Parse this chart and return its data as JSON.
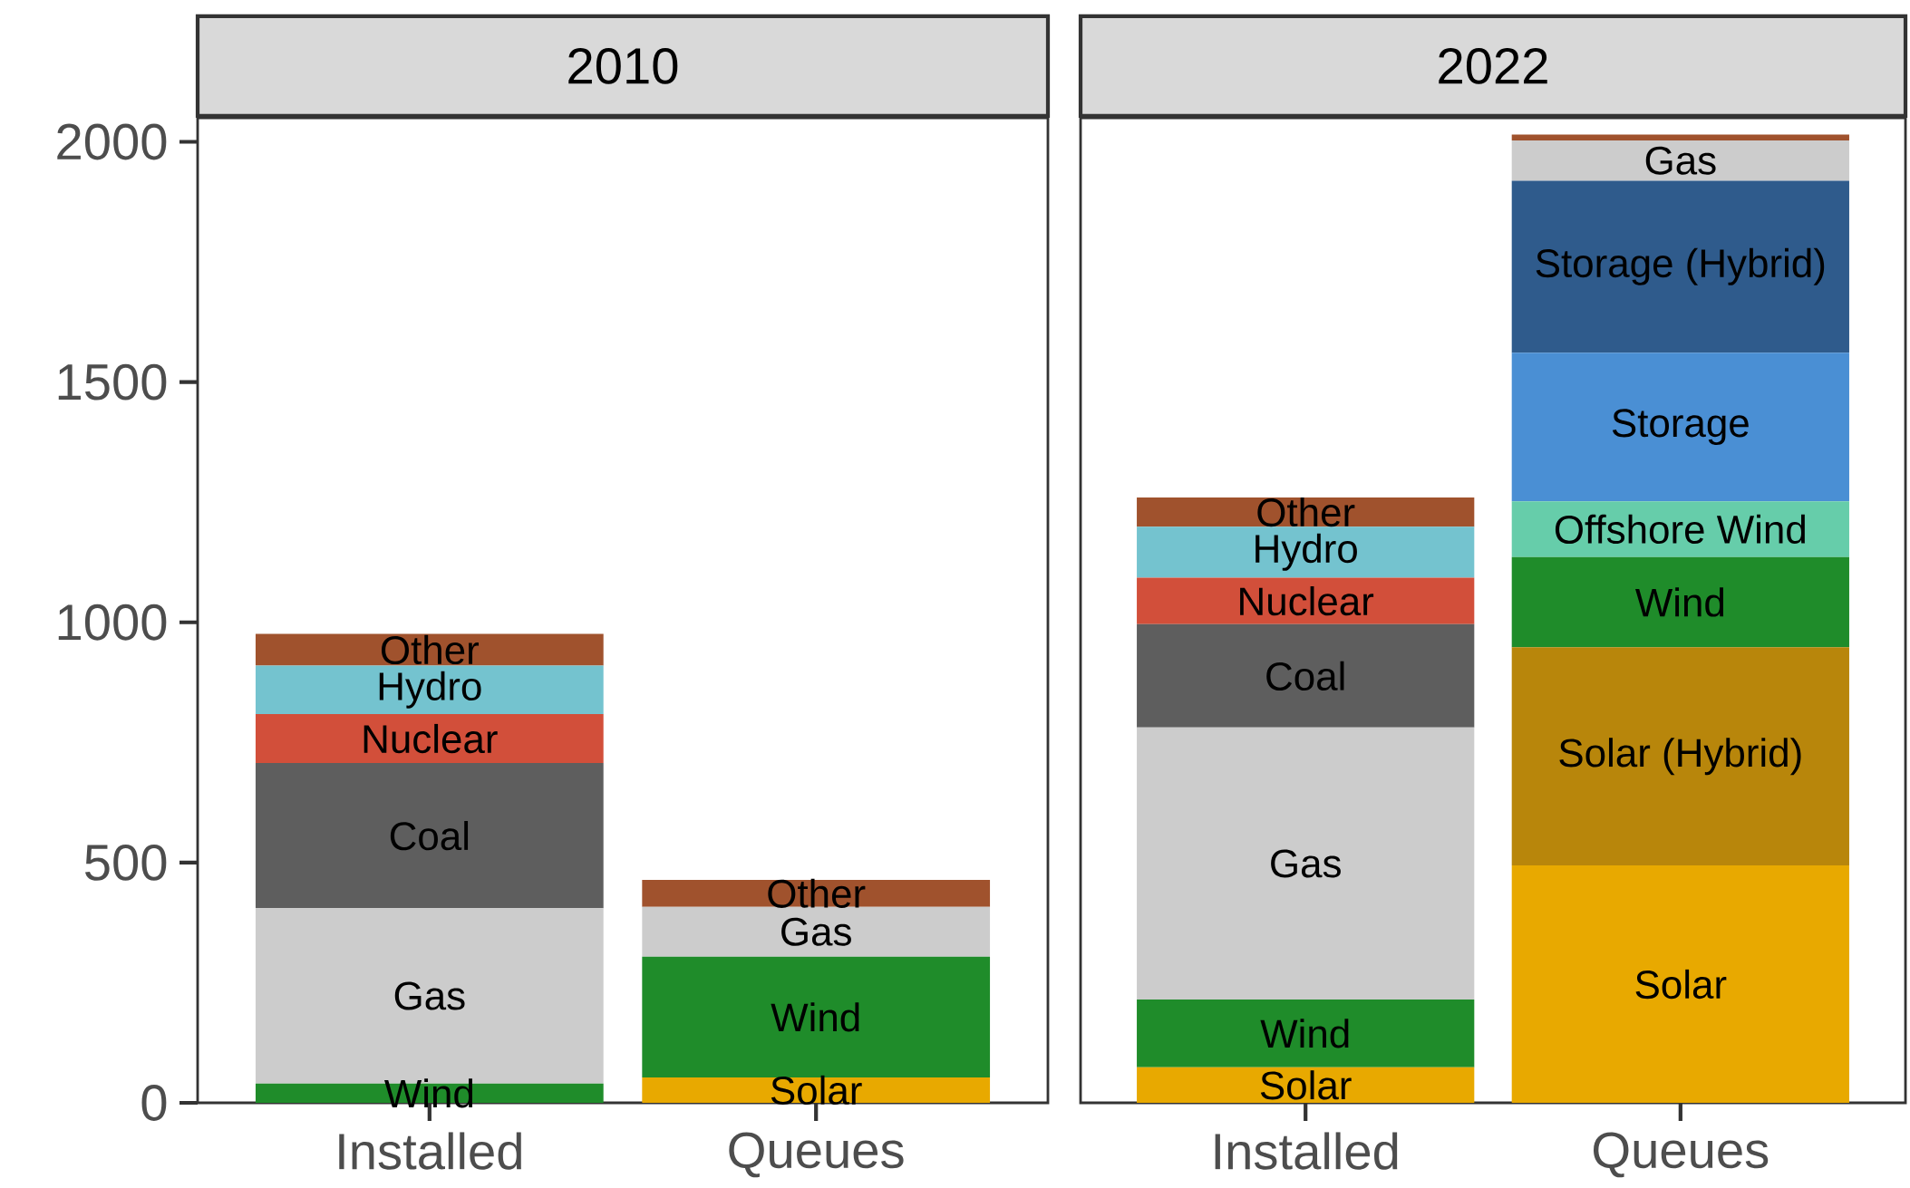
{
  "chart_data": [
    {
      "type": "bar",
      "title": "2010",
      "stacked": true,
      "categories": [
        "Installed",
        "Queues"
      ],
      "ylim": [
        0,
        2050
      ],
      "yticks": [
        0,
        500,
        1000,
        1500,
        2000
      ],
      "series": [
        {
          "color": "#e8a900",
          "values": [
            null,
            53
          ],
          "value_labels": [
            null,
            "Solar"
          ]
        },
        {
          "color": "#1f8c2a",
          "values": [
            40,
            251
          ],
          "value_labels": [
            "Wind",
            "Wind"
          ]
        },
        {
          "color": "#cccccc",
          "values": [
            365,
            104
          ],
          "value_labels": [
            "Gas",
            "Gas"
          ]
        },
        {
          "color": "#5e5e5e",
          "values": [
            302,
            null
          ],
          "value_labels": [
            "Coal",
            null
          ]
        },
        {
          "color": "#d24f3a",
          "values": [
            102,
            null
          ],
          "value_labels": [
            "Nuclear",
            null
          ]
        },
        {
          "color": "#74c3cf",
          "values": [
            101,
            null
          ],
          "value_labels": [
            "Hydro",
            null
          ]
        },
        {
          "color": "#a0522d",
          "values": [
            66,
            56
          ],
          "value_labels": [
            "Other",
            "Other"
          ]
        }
      ]
    },
    {
      "type": "bar",
      "title": "2022",
      "stacked": true,
      "tick_labels": "x",
      "categories": [
        "Installed",
        "Queues"
      ],
      "ylim": [
        0,
        2050
      ],
      "yticks": [
        0,
        500,
        1000,
        1500,
        2000
      ],
      "series": [
        {
          "color": "#e8a900",
          "values": [
            74,
            494
          ],
          "value_labels": [
            "Solar",
            "Solar"
          ]
        },
        {
          "color": "#b8860b",
          "values": [
            null,
            454
          ],
          "value_labels": [
            null,
            "Solar (Hybrid)"
          ]
        },
        {
          "color": "#1f8c2a",
          "values": [
            141,
            188
          ],
          "value_labels": [
            "Wind",
            "Wind"
          ]
        },
        {
          "color": "#66cdaa",
          "values": [
            null,
            116
          ],
          "value_labels": [
            null,
            "Offshore Wind"
          ]
        },
        {
          "color": "#4a8fd4",
          "values": [
            null,
            309
          ],
          "value_labels": [
            null,
            "Storage"
          ]
        },
        {
          "color": "#2f5b8c",
          "values": [
            null,
            358
          ],
          "value_labels": [
            null,
            "Storage (Hybrid)"
          ]
        },
        {
          "color": "#cccccc",
          "values": [
            566,
            84
          ],
          "value_labels": [
            "Gas",
            "Gas"
          ]
        },
        {
          "color": "#5e5e5e",
          "values": [
            215,
            null
          ],
          "value_labels": [
            "Coal",
            null
          ]
        },
        {
          "color": "#d24f3a",
          "values": [
            97,
            null
          ],
          "value_labels": [
            "Nuclear",
            null
          ]
        },
        {
          "color": "#74c3cf",
          "values": [
            106,
            null
          ],
          "value_labels": [
            "Hydro",
            null
          ]
        },
        {
          "color": "#a0522d",
          "values": [
            61,
            12
          ],
          "value_labels": [
            "Other",
            null
          ]
        }
      ]
    }
  ]
}
